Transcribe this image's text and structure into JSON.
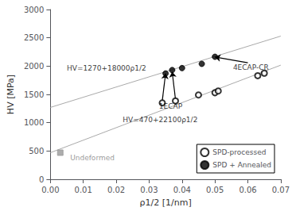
{
  "chart_data": {
    "type": "scatter",
    "xlabel": "ρ1/2 [1/nm]",
    "ylabel": "HV [MPa]",
    "xlim": [
      0.0,
      0.07
    ],
    "ylim": [
      0,
      3000
    ],
    "xticks": [
      {
        "value": 0.0,
        "label": "0.00"
      },
      0.01,
      0.02,
      0.03,
      0.04,
      0.05,
      0.06,
      0.07
    ],
    "yticks": [
      0,
      500,
      1000,
      1500,
      2000,
      2500,
      3000
    ],
    "grid": false,
    "legend": "lower right",
    "series": [
      {
        "name": "SPD-processed",
        "type": "scatter",
        "marker": "circle-open",
        "color": "#000000",
        "x": [
          0.034,
          0.038,
          0.045,
          0.05,
          0.051,
          0.063,
          0.065
        ],
        "values": [
          1350,
          1385,
          1490,
          1530,
          1560,
          1830,
          1875
        ]
      },
      {
        "name": "SPD + Annealed",
        "type": "scatter",
        "marker": "circle",
        "color": "#000000",
        "x": [
          0.035,
          0.037,
          0.04,
          0.046,
          0.05
        ],
        "values": [
          1870,
          1930,
          1965,
          2040,
          2165
        ]
      },
      {
        "type": "scatter",
        "marker": "square",
        "color": "#999999",
        "x": [
          0.003
        ],
        "values": [
          470
        ]
      },
      {
        "type": "line",
        "color": "#aaaaaa",
        "x": [
          0.0,
          0.07
        ],
        "values": [
          470,
          2017
        ]
      },
      {
        "type": "line",
        "color": "#aaaaaa",
        "x": [
          0.0,
          0.07
        ],
        "values": [
          1270,
          2530
        ]
      }
    ],
    "annotations": [
      {
        "text": "HV=1270+18000ρ1/2",
        "x": 0.005,
        "y": 1960
      },
      {
        "text": "HV=470+22100ρ1/2",
        "x": 0.022,
        "y": 1050
      },
      {
        "text": "Undeformed",
        "x": 0.006,
        "y": 380,
        "color": "gray"
      },
      {
        "text": "1ECAP",
        "x": 0.033,
        "y": 1285
      },
      {
        "text": "4ECAP-CR",
        "x": 0.0555,
        "y": 1980
      },
      {
        "from": [
          0.034,
          1390
        ],
        "to": [
          0.035,
          1870
        ]
      },
      {
        "from": [
          0.038,
          1420
        ],
        "to": [
          0.037,
          1900
        ]
      },
      {
        "from": [
          0.06,
          2060
        ],
        "to": [
          0.05,
          2160
        ]
      }
    ]
  }
}
